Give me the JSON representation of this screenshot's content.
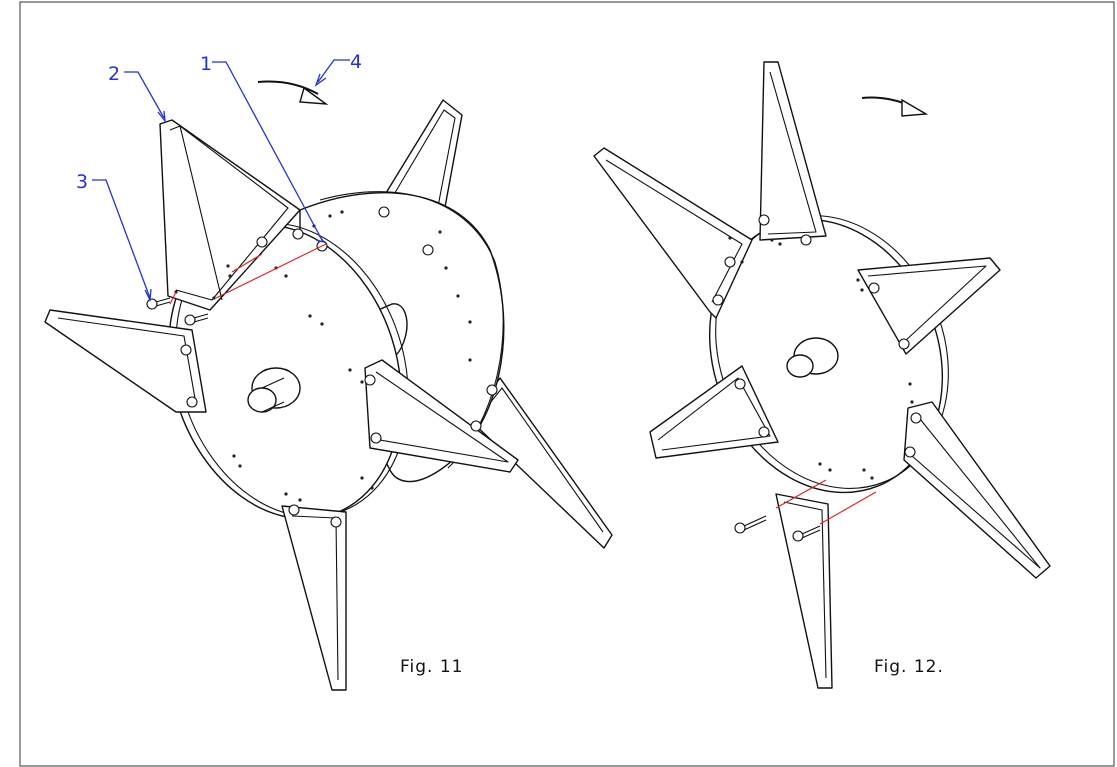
{
  "figures": [
    {
      "id": "fig11",
      "label": "Fig. 11"
    },
    {
      "id": "fig12",
      "label": "Fig. 12."
    }
  ],
  "callouts": [
    {
      "number": "1"
    },
    {
      "number": "2"
    },
    {
      "number": "3"
    },
    {
      "number": "4"
    }
  ],
  "colors": {
    "outline": "#111111",
    "callout": "#2233d6",
    "alignment_line": "#d82020",
    "frame": "#555555"
  }
}
